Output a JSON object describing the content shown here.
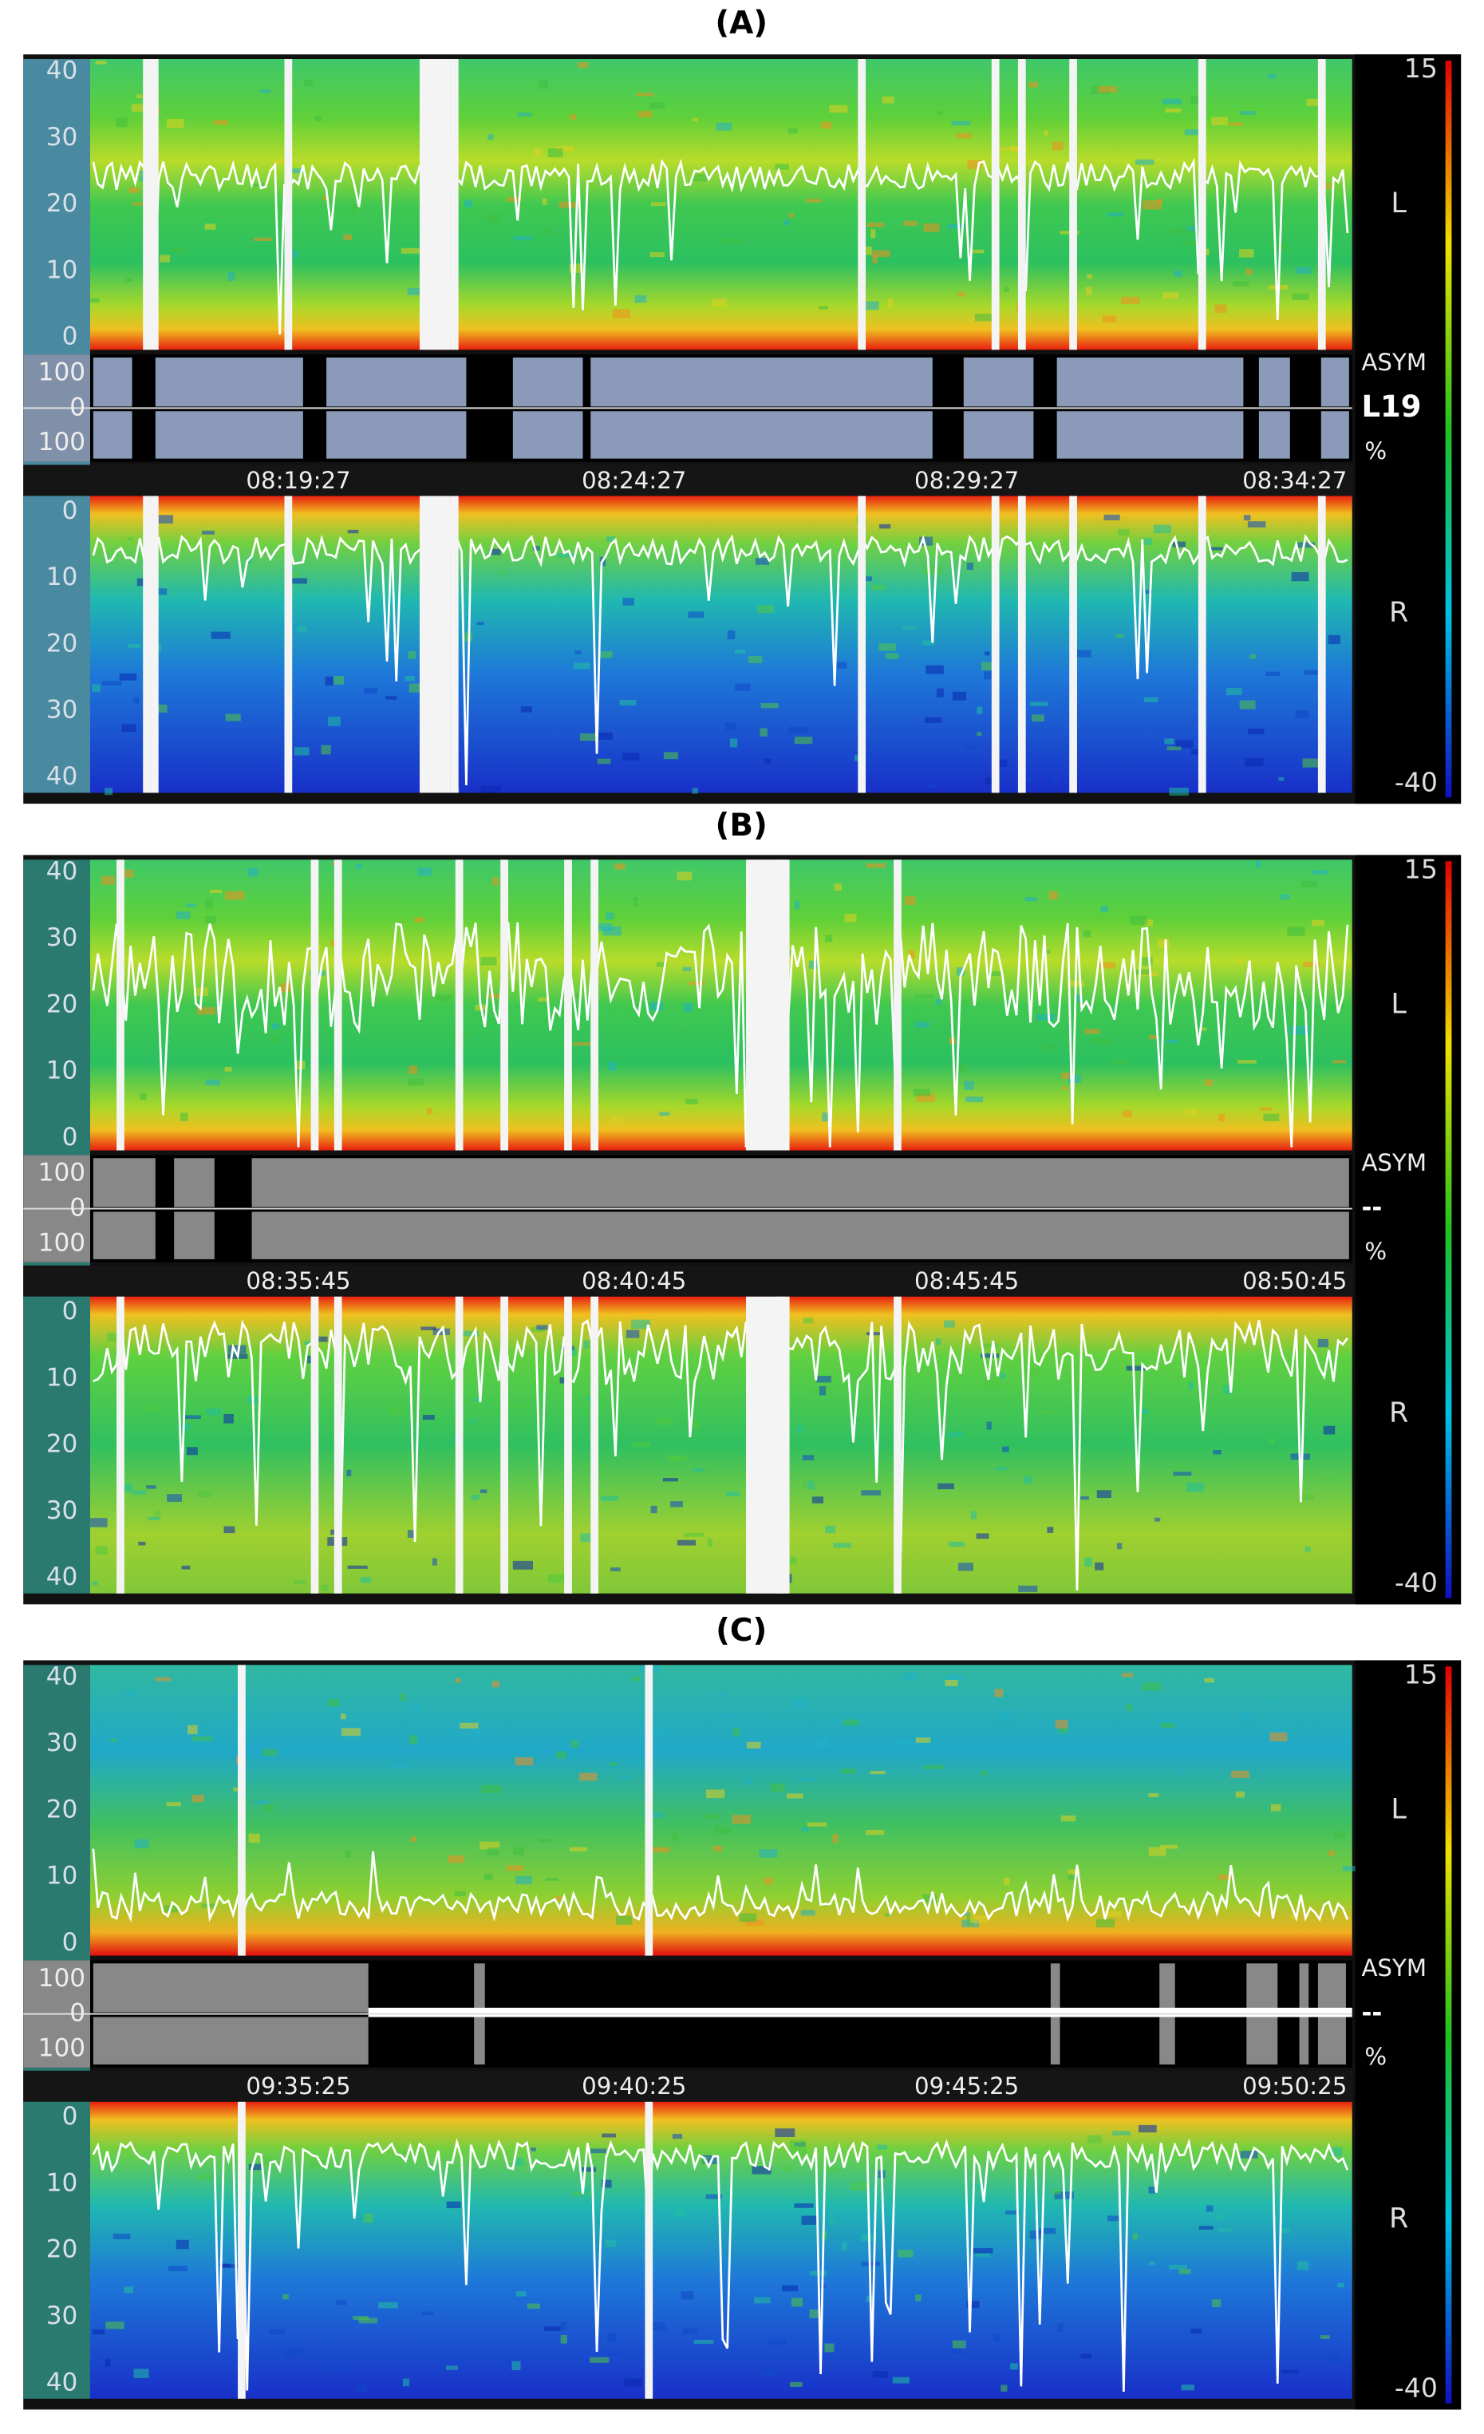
{
  "panels": [
    {
      "label": "(A)",
      "l_axis": [
        "40",
        "30",
        "20",
        "10",
        "0"
      ],
      "asym_axis": [
        "100",
        "0",
        "100"
      ],
      "times": [
        "08:19:27",
        "08:24:27",
        "08:29:27",
        "08:34:27"
      ],
      "r_axis": [
        "0",
        "10",
        "20",
        "30",
        "40"
      ],
      "scale_top": "15",
      "scale_bottom": "-40",
      "l_label": "L",
      "r_label": "R",
      "asym_label": "ASYM",
      "asym_value": "L19",
      "asym_unit": "%"
    },
    {
      "label": "(B)",
      "l_axis": [
        "40",
        "30",
        "20",
        "10",
        "0"
      ],
      "asym_axis": [
        "100",
        "0",
        "100"
      ],
      "times": [
        "08:35:45",
        "08:40:45",
        "08:45:45",
        "08:50:45"
      ],
      "r_axis": [
        "0",
        "10",
        "20",
        "30",
        "40"
      ],
      "scale_top": "15",
      "scale_bottom": "-40",
      "l_label": "L",
      "r_label": "R",
      "asym_label": "ASYM",
      "asym_value": "--",
      "asym_unit": "%"
    },
    {
      "label": "(C)",
      "l_axis": [
        "40",
        "30",
        "20",
        "10",
        "0"
      ],
      "asym_axis": [
        "100",
        "0",
        "100"
      ],
      "times": [
        "09:35:25",
        "09:40:25",
        "09:45:25",
        "09:50:25"
      ],
      "r_axis": [
        "0",
        "10",
        "20",
        "30",
        "40"
      ],
      "scale_top": "15",
      "scale_bottom": "-40",
      "l_label": "L",
      "r_label": "R",
      "asym_label": "ASYM",
      "asym_value": "--",
      "asym_unit": "%"
    }
  ]
}
